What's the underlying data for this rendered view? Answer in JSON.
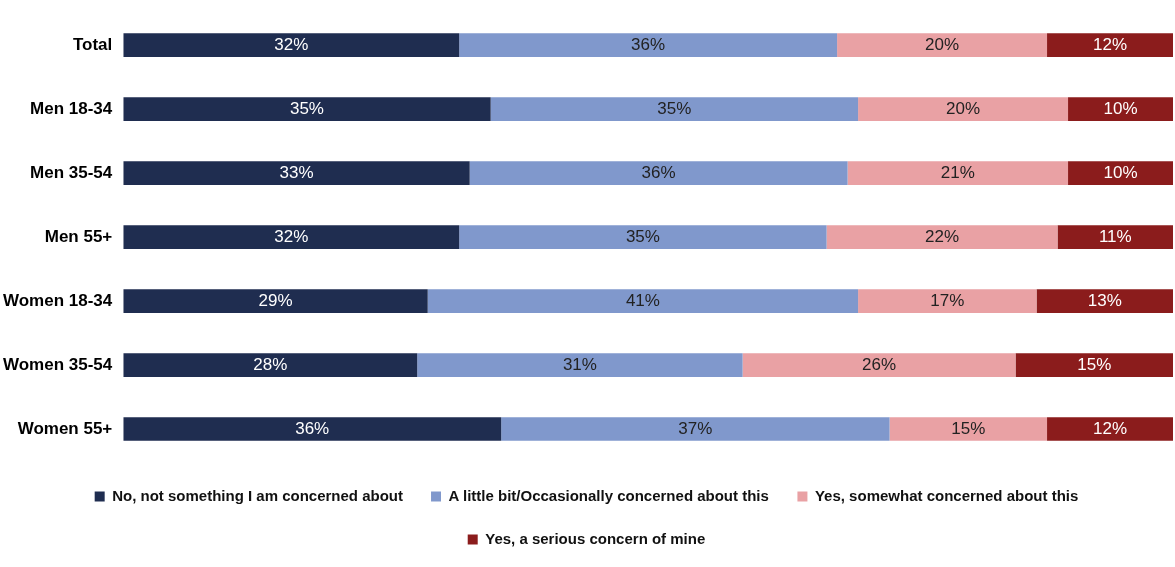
{
  "chart_data": {
    "type": "bar",
    "orientation": "horizontal",
    "stacked": true,
    "legend": "bottom",
    "grid": false,
    "tick_labels": "y",
    "xlim": [
      0,
      100
    ],
    "categories": [
      "Total",
      "Men 18-34",
      "Men 35-54",
      "Men 55+",
      "Women 18-34",
      "Women 35-54",
      "Women 55+"
    ],
    "series": [
      {
        "name": "No, not something I am concerned about",
        "color": "#1f2d50",
        "values": [
          32,
          35,
          33,
          32,
          29,
          28,
          36
        ],
        "value_labels": [
          "32%",
          "35%",
          "33%",
          "32%",
          "29%",
          "28%",
          "36%"
        ]
      },
      {
        "name": "A little bit/Occasionally concerned about this",
        "color": "#8098cc",
        "values": [
          36,
          35,
          36,
          35,
          41,
          31,
          37
        ],
        "value_labels": [
          "36%",
          "35%",
          "36%",
          "35%",
          "41%",
          "31%",
          "37%"
        ]
      },
      {
        "name": "Yes, somewhat concerned about this",
        "color": "#e9a1a4",
        "values": [
          20,
          20,
          21,
          22,
          17,
          26,
          15
        ],
        "value_labels": [
          "20%",
          "20%",
          "21%",
          "22%",
          "17%",
          "26%",
          "15%"
        ]
      },
      {
        "name": "Yes, a serious concern of mine",
        "color": "#8b1c1c",
        "values": [
          12,
          10,
          10,
          11,
          13,
          15,
          12
        ],
        "value_labels": [
          "12%",
          "10%",
          "10%",
          "11%",
          "13%",
          "15%",
          "12%"
        ]
      }
    ]
  }
}
